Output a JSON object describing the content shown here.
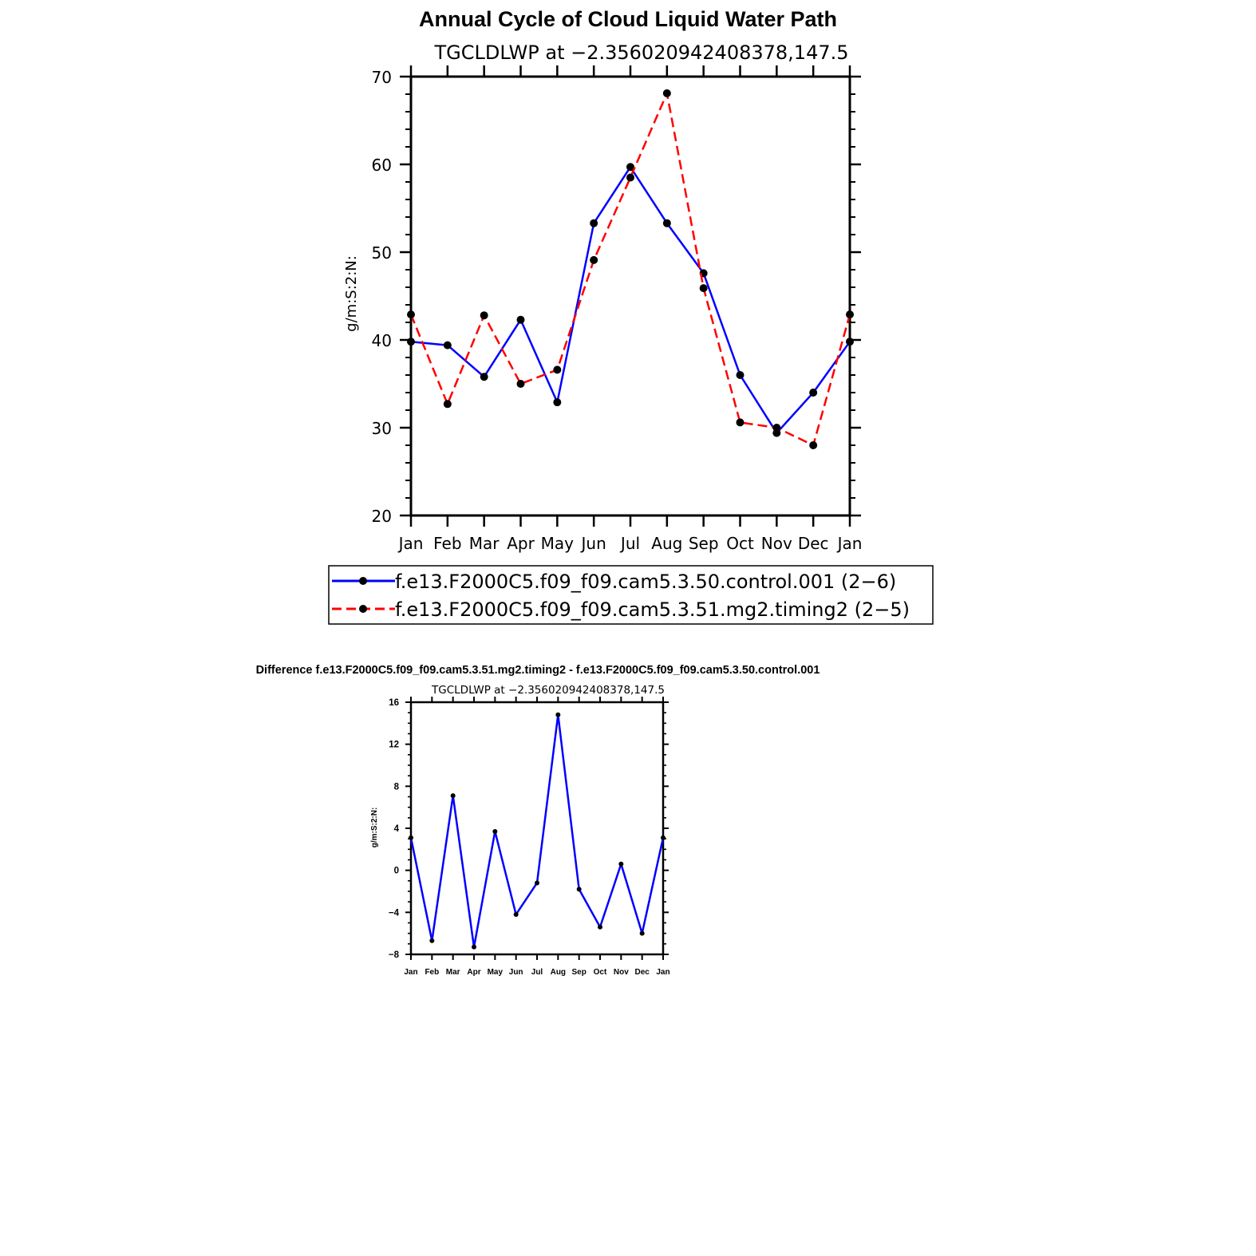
{
  "chart_data": [
    {
      "type": "line",
      "title": "Annual Cycle of Cloud Liquid Water Path",
      "subtitle": "TGCLDLWP  at  −2.356020942408378,147.5",
      "ylabel": "g/m:S:2:N:",
      "xlabel": "",
      "categories": [
        "Jan",
        "Feb",
        "Mar",
        "Apr",
        "May",
        "Jun",
        "Jul",
        "Aug",
        "Sep",
        "Oct",
        "Nov",
        "Dec",
        "Jan"
      ],
      "ylim": [
        20,
        70
      ],
      "yticks": [
        "20",
        "30",
        "40",
        "50",
        "60",
        "70"
      ],
      "grid": false,
      "legend_position": "bottom",
      "series": [
        {
          "name": "f.e13.F2000C5.f09_f09.cam5.3.50.control.001  (2−6)",
          "color": "#0000ff",
          "dash": "solid",
          "values": [
            39.8,
            39.4,
            35.8,
            42.3,
            32.9,
            53.3,
            59.7,
            53.3,
            47.6,
            36.0,
            29.4,
            34.0,
            39.8
          ]
        },
        {
          "name": "f.e13.F2000C5.f09_f09.cam5.3.51.mg2.timing2  (2−5)",
          "color": "#ff0000",
          "dash": "dashed",
          "values": [
            42.9,
            32.7,
            42.8,
            35.0,
            36.6,
            49.1,
            58.5,
            68.1,
            45.9,
            30.6,
            30.0,
            28.0,
            42.9
          ]
        }
      ]
    },
    {
      "type": "line",
      "title": "Difference f.e13.F2000C5.f09_f09.cam5.3.51.mg2.timing2 - f.e13.F2000C5.f09_f09.cam5.3.50.control.001",
      "subtitle": "TGCLDLWP  at  −2.356020942408378,147.5",
      "ylabel": "g/m:S:2:N:",
      "xlabel": "",
      "categories": [
        "Jan",
        "Feb",
        "Mar",
        "Apr",
        "May",
        "Jun",
        "Jul",
        "Aug",
        "Sep",
        "Oct",
        "Nov",
        "Dec",
        "Jan"
      ],
      "ylim": [
        -8,
        16
      ],
      "yticks": [
        "−8",
        "−4",
        "0",
        "4",
        "8",
        "12",
        "16"
      ],
      "grid": false,
      "series": [
        {
          "color": "#0000ff",
          "dash": "solid",
          "values": [
            3.1,
            -6.7,
            7.1,
            -7.3,
            3.7,
            -4.2,
            -1.2,
            14.8,
            -1.8,
            -5.4,
            0.6,
            -6.0,
            3.1
          ]
        }
      ]
    }
  ]
}
